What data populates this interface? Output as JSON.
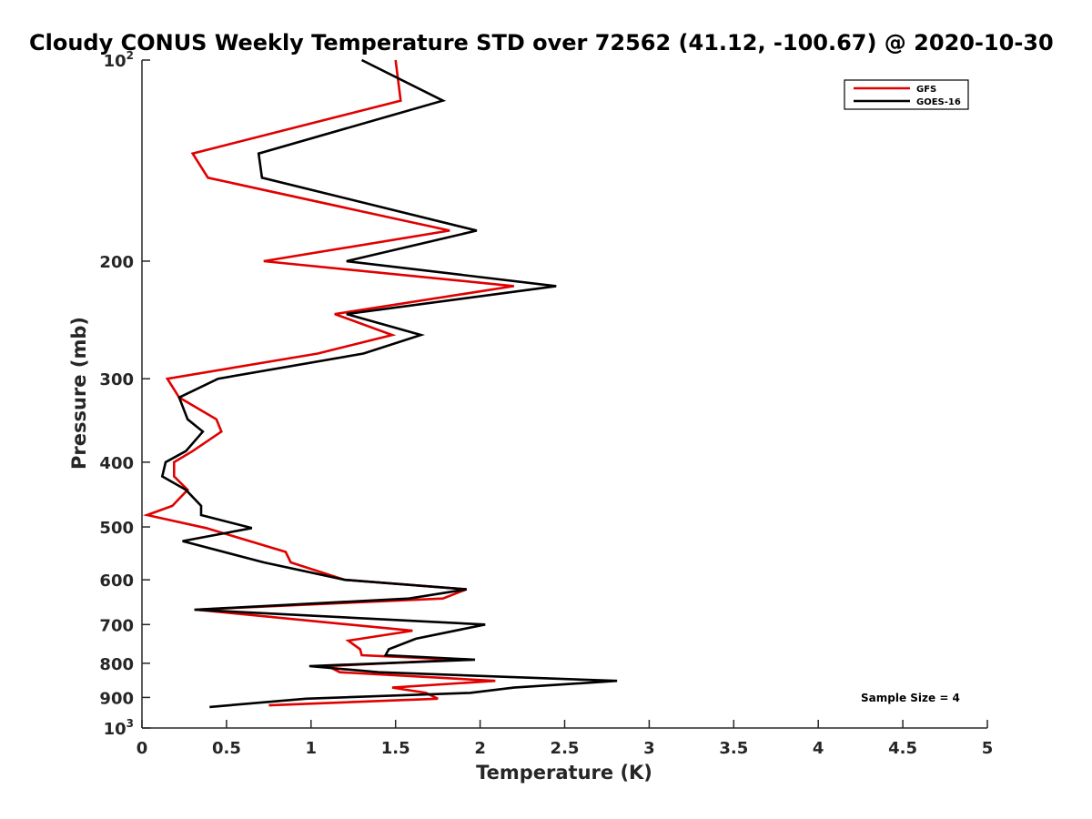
{
  "chart_data": {
    "type": "line",
    "title": "Cloudy CONUS Weekly Temperature STD over 72562 (41.12, -100.67) @ 2020-10-30",
    "xlabel": "Temperature (K)",
    "ylabel": "Pressure (mb)",
    "xlim": [
      0,
      5
    ],
    "ylim": [
      100,
      1000
    ],
    "yscale": "log",
    "y_reversed": true,
    "x_ticks": [
      "0",
      "0.5",
      "1",
      "1.5",
      "2",
      "2.5",
      "3",
      "3.5",
      "4",
      "4.5",
      "5"
    ],
    "y_ticks": [
      {
        "value": 100,
        "base": "10",
        "exp": "2"
      },
      {
        "value": 200,
        "label": "200"
      },
      {
        "value": 300,
        "label": "300"
      },
      {
        "value": 400,
        "label": "400"
      },
      {
        "value": 500,
        "label": "500"
      },
      {
        "value": 600,
        "label": "600"
      },
      {
        "value": 700,
        "label": "700"
      },
      {
        "value": 800,
        "label": "800"
      },
      {
        "value": 900,
        "label": "900"
      },
      {
        "value": 1000,
        "base": "10",
        "exp": "3"
      }
    ],
    "legend_position": "top-right",
    "grid": false,
    "annotation": "Sample Size = 4",
    "series": [
      {
        "name": "GFS",
        "color": "#e00000",
        "points": [
          [
            1.5,
            100
          ],
          [
            1.53,
            115
          ],
          [
            0.3,
            138
          ],
          [
            0.39,
            150
          ],
          [
            1.82,
            180
          ],
          [
            0.72,
            200
          ],
          [
            2.2,
            218
          ],
          [
            1.14,
            240
          ],
          [
            1.48,
            258
          ],
          [
            1.04,
            275
          ],
          [
            0.15,
            300
          ],
          [
            0.22,
            320
          ],
          [
            0.44,
            345
          ],
          [
            0.47,
            360
          ],
          [
            0.3,
            385
          ],
          [
            0.19,
            400
          ],
          [
            0.19,
            420
          ],
          [
            0.27,
            440
          ],
          [
            0.18,
            465
          ],
          [
            0.03,
            480
          ],
          [
            0.38,
            502
          ],
          [
            0.85,
            545
          ],
          [
            0.88,
            565
          ],
          [
            1.2,
            600
          ],
          [
            1.92,
            620
          ],
          [
            1.78,
            640
          ],
          [
            0.32,
            665
          ],
          [
            1.6,
            715
          ],
          [
            1.22,
            740
          ],
          [
            1.29,
            762
          ],
          [
            1.3,
            778
          ],
          [
            1.88,
            790
          ],
          [
            1.1,
            808
          ],
          [
            1.17,
            825
          ],
          [
            2.09,
            850
          ],
          [
            1.48,
            870
          ],
          [
            1.68,
            886
          ],
          [
            1.75,
            904
          ],
          [
            0.75,
            925
          ]
        ]
      },
      {
        "name": "GOES-16",
        "color": "#000000",
        "points": [
          [
            1.3,
            100
          ],
          [
            1.78,
            115
          ],
          [
            0.69,
            138
          ],
          [
            0.71,
            150
          ],
          [
            1.98,
            180
          ],
          [
            1.21,
            200
          ],
          [
            2.45,
            218
          ],
          [
            1.21,
            240
          ],
          [
            1.65,
            258
          ],
          [
            1.31,
            275
          ],
          [
            0.45,
            300
          ],
          [
            0.22,
            320
          ],
          [
            0.27,
            345
          ],
          [
            0.36,
            360
          ],
          [
            0.26,
            385
          ],
          [
            0.14,
            400
          ],
          [
            0.12,
            420
          ],
          [
            0.26,
            440
          ],
          [
            0.35,
            465
          ],
          [
            0.35,
            480
          ],
          [
            0.65,
            502
          ],
          [
            0.24,
            525
          ],
          [
            0.72,
            565
          ],
          [
            1.2,
            600
          ],
          [
            1.92,
            620
          ],
          [
            1.58,
            640
          ],
          [
            0.31,
            665
          ],
          [
            2.03,
            700
          ],
          [
            1.62,
            735
          ],
          [
            1.46,
            762
          ],
          [
            1.44,
            778
          ],
          [
            1.97,
            790
          ],
          [
            0.99,
            808
          ],
          [
            1.4,
            825
          ],
          [
            2.81,
            850
          ],
          [
            2.2,
            870
          ],
          [
            1.94,
            886
          ],
          [
            0.97,
            904
          ],
          [
            0.4,
            930
          ]
        ]
      }
    ]
  }
}
